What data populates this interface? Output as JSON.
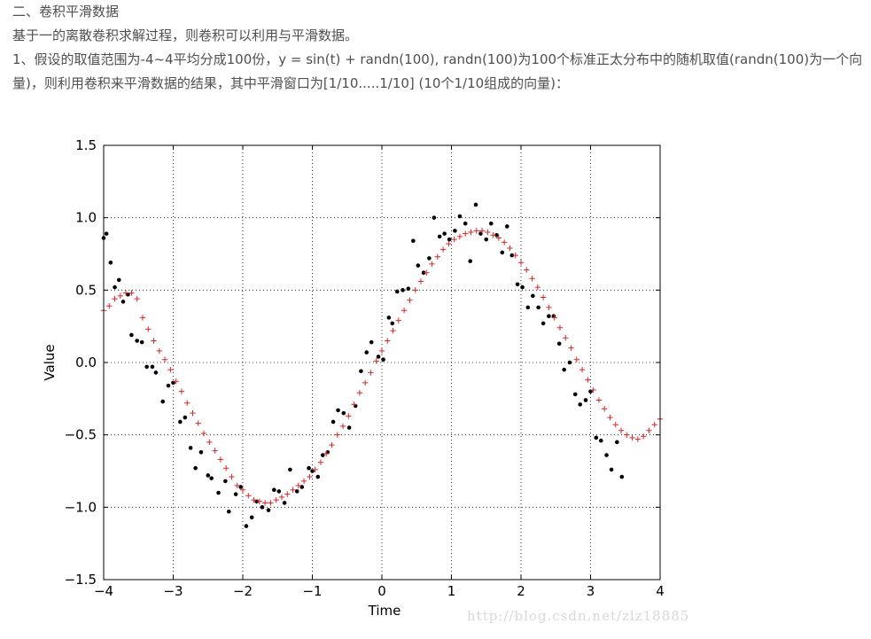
{
  "article": {
    "heading": "二、卷积平滑数据",
    "intro": "基于一的离散卷积求解过程，则卷积可以利用与平滑数据。",
    "paragraph": "1、假设的取值范围为-4~4平均分成100份，y = sin(t) + randn(100), randn(100)为100个标准正太分布中的随机取值(randn(100)为一个向量)，则利用卷积来平滑数据的结果，其中平滑窗口为[1/10.....1/10] (10个1/10组成的向量)："
  },
  "watermark": "http://blog.csdn.net/zlz18885",
  "chart_data": {
    "type": "scatter",
    "xlabel": "Time",
    "ylabel": "Value",
    "xlim": [
      -4,
      4
    ],
    "ylim": [
      -1.5,
      1.5
    ],
    "xticks": [
      -4,
      -3,
      -2,
      -1,
      0,
      1,
      2,
      3,
      4
    ],
    "xtick_labels": [
      "−4",
      "−3",
      "−2",
      "−1",
      "0",
      "1",
      "2",
      "3",
      "4"
    ],
    "yticks": [
      -1.5,
      -1.0,
      -0.5,
      0.0,
      0.5,
      1.0,
      1.5
    ],
    "ytick_labels": [
      "−1.5",
      "−1.0",
      "−0.5",
      "0.0",
      "0.5",
      "1.0",
      "1.5"
    ],
    "grid": true,
    "series": [
      {
        "marker": "dot",
        "color": "#000000",
        "points": [
          [
            -4.0,
            0.86
          ],
          [
            -3.96,
            0.89
          ],
          [
            -3.9,
            0.69
          ],
          [
            -3.84,
            0.52
          ],
          [
            -3.78,
            0.57
          ],
          [
            -3.72,
            0.42
          ],
          [
            -3.65,
            0.47
          ],
          [
            -3.6,
            0.19
          ],
          [
            -3.52,
            0.15
          ],
          [
            -3.45,
            0.14
          ],
          [
            -3.38,
            -0.03
          ],
          [
            -3.3,
            -0.03
          ],
          [
            -3.25,
            -0.07
          ],
          [
            -3.15,
            -0.27
          ],
          [
            -3.07,
            -0.16
          ],
          [
            -3.0,
            -0.14
          ],
          [
            -2.9,
            -0.41
          ],
          [
            -2.83,
            -0.38
          ],
          [
            -2.75,
            -0.59
          ],
          [
            -2.68,
            -0.73
          ],
          [
            -2.6,
            -0.62
          ],
          [
            -2.5,
            -0.78
          ],
          [
            -2.45,
            -0.8
          ],
          [
            -2.35,
            -0.9
          ],
          [
            -2.25,
            -0.82
          ],
          [
            -2.2,
            -1.03
          ],
          [
            -2.1,
            -0.91
          ],
          [
            -2.03,
            -0.86
          ],
          [
            -1.95,
            -1.13
          ],
          [
            -1.87,
            -1.07
          ],
          [
            -1.8,
            -0.96
          ],
          [
            -1.72,
            -1.0
          ],
          [
            -1.63,
            -1.02
          ],
          [
            -1.55,
            -0.88
          ],
          [
            -1.48,
            -0.89
          ],
          [
            -1.4,
            -0.97
          ],
          [
            -1.32,
            -0.74
          ],
          [
            -1.22,
            -0.89
          ],
          [
            -1.15,
            -0.86
          ],
          [
            -1.05,
            -0.73
          ],
          [
            -1.0,
            -0.75
          ],
          [
            -0.92,
            -0.79
          ],
          [
            -0.85,
            -0.64
          ],
          [
            -0.78,
            -0.62
          ],
          [
            -0.7,
            -0.41
          ],
          [
            -0.63,
            -0.33
          ],
          [
            -0.55,
            -0.35
          ],
          [
            -0.47,
            -0.45
          ],
          [
            -0.38,
            -0.3
          ],
          [
            -0.3,
            -0.06
          ],
          [
            -0.22,
            0.07
          ],
          [
            -0.15,
            0.14
          ],
          [
            -0.05,
            0.04
          ],
          [
            0.02,
            0.02
          ],
          [
            0.1,
            0.31
          ],
          [
            0.15,
            0.27
          ],
          [
            0.22,
            0.49
          ],
          [
            0.3,
            0.5
          ],
          [
            0.38,
            0.51
          ],
          [
            0.45,
            0.84
          ],
          [
            0.52,
            0.67
          ],
          [
            0.6,
            0.62
          ],
          [
            0.68,
            0.72
          ],
          [
            0.75,
            1.0
          ],
          [
            0.83,
            0.87
          ],
          [
            0.9,
            0.89
          ],
          [
            0.97,
            0.85
          ],
          [
            1.05,
            0.91
          ],
          [
            1.12,
            1.01
          ],
          [
            1.2,
            0.96
          ],
          [
            1.27,
            0.7
          ],
          [
            1.35,
            1.09
          ],
          [
            1.42,
            0.89
          ],
          [
            1.5,
            0.85
          ],
          [
            1.57,
            0.96
          ],
          [
            1.65,
            0.88
          ],
          [
            1.73,
            0.76
          ],
          [
            1.8,
            0.94
          ],
          [
            1.87,
            0.74
          ],
          [
            1.95,
            0.54
          ],
          [
            2.02,
            0.52
          ],
          [
            2.1,
            0.38
          ],
          [
            2.17,
            0.46
          ],
          [
            2.25,
            0.38
          ],
          [
            2.32,
            0.27
          ],
          [
            2.4,
            0.32
          ],
          [
            2.47,
            0.32
          ],
          [
            2.55,
            0.13
          ],
          [
            2.62,
            -0.05
          ],
          [
            2.7,
            0.0
          ],
          [
            2.78,
            -0.22
          ],
          [
            2.85,
            -0.29
          ],
          [
            2.93,
            -0.26
          ],
          [
            3.0,
            -0.2
          ],
          [
            3.08,
            -0.52
          ],
          [
            3.15,
            -0.54
          ],
          [
            3.23,
            -0.64
          ],
          [
            3.3,
            -0.74
          ],
          [
            3.38,
            -0.55
          ],
          [
            3.45,
            -0.79
          ]
        ]
      },
      {
        "marker": "plus",
        "color": "#d62728",
        "points": [
          [
            -4.0,
            0.36
          ],
          [
            -3.92,
            0.39
          ],
          [
            -3.84,
            0.44
          ],
          [
            -3.76,
            0.46
          ],
          [
            -3.68,
            0.48
          ],
          [
            -3.6,
            0.48
          ],
          [
            -3.52,
            0.44
          ],
          [
            -3.44,
            0.31
          ],
          [
            -3.36,
            0.23
          ],
          [
            -3.28,
            0.15
          ],
          [
            -3.2,
            0.08
          ],
          [
            -3.12,
            0.02
          ],
          [
            -3.04,
            -0.05
          ],
          [
            -2.96,
            -0.13
          ],
          [
            -2.88,
            -0.2
          ],
          [
            -2.8,
            -0.28
          ],
          [
            -2.72,
            -0.35
          ],
          [
            -2.64,
            -0.42
          ],
          [
            -2.56,
            -0.49
          ],
          [
            -2.48,
            -0.55
          ],
          [
            -2.4,
            -0.61
          ],
          [
            -2.32,
            -0.67
          ],
          [
            -2.24,
            -0.73
          ],
          [
            -2.16,
            -0.79
          ],
          [
            -2.08,
            -0.85
          ],
          [
            -2.0,
            -0.88
          ],
          [
            -1.92,
            -0.92
          ],
          [
            -1.84,
            -0.95
          ],
          [
            -1.76,
            -0.96
          ],
          [
            -1.68,
            -0.97
          ],
          [
            -1.6,
            -0.97
          ],
          [
            -1.52,
            -0.95
          ],
          [
            -1.44,
            -0.93
          ],
          [
            -1.36,
            -0.91
          ],
          [
            -1.28,
            -0.88
          ],
          [
            -1.2,
            -0.85
          ],
          [
            -1.12,
            -0.82
          ],
          [
            -1.04,
            -0.79
          ],
          [
            -0.96,
            -0.74
          ],
          [
            -0.88,
            -0.69
          ],
          [
            -0.8,
            -0.63
          ],
          [
            -0.72,
            -0.57
          ],
          [
            -0.64,
            -0.5
          ],
          [
            -0.56,
            -0.44
          ],
          [
            -0.48,
            -0.37
          ],
          [
            -0.4,
            -0.29
          ],
          [
            -0.32,
            -0.21
          ],
          [
            -0.24,
            -0.14
          ],
          [
            -0.16,
            -0.07
          ],
          [
            -0.08,
            0.01
          ],
          [
            0.0,
            0.08
          ],
          [
            0.08,
            0.15
          ],
          [
            0.16,
            0.22
          ],
          [
            0.24,
            0.29
          ],
          [
            0.32,
            0.36
          ],
          [
            0.4,
            0.43
          ],
          [
            0.48,
            0.5
          ],
          [
            0.56,
            0.56
          ],
          [
            0.64,
            0.62
          ],
          [
            0.72,
            0.68
          ],
          [
            0.8,
            0.73
          ],
          [
            0.88,
            0.78
          ],
          [
            0.96,
            0.82
          ],
          [
            1.04,
            0.85
          ],
          [
            1.12,
            0.87
          ],
          [
            1.2,
            0.89
          ],
          [
            1.28,
            0.9
          ],
          [
            1.36,
            0.91
          ],
          [
            1.44,
            0.91
          ],
          [
            1.52,
            0.9
          ],
          [
            1.6,
            0.88
          ],
          [
            1.68,
            0.86
          ],
          [
            1.76,
            0.83
          ],
          [
            1.84,
            0.79
          ],
          [
            1.92,
            0.74
          ],
          [
            2.0,
            0.69
          ],
          [
            2.08,
            0.64
          ],
          [
            2.16,
            0.58
          ],
          [
            2.24,
            0.52
          ],
          [
            2.32,
            0.45
          ],
          [
            2.4,
            0.38
          ],
          [
            2.48,
            0.31
          ],
          [
            2.56,
            0.24
          ],
          [
            2.64,
            0.17
          ],
          [
            2.72,
            0.1
          ],
          [
            2.8,
            0.02
          ],
          [
            2.88,
            -0.05
          ],
          [
            2.96,
            -0.12
          ],
          [
            3.04,
            -0.19
          ],
          [
            3.12,
            -0.26
          ],
          [
            3.2,
            -0.32
          ],
          [
            3.28,
            -0.38
          ],
          [
            3.36,
            -0.43
          ],
          [
            3.44,
            -0.47
          ],
          [
            3.52,
            -0.5
          ],
          [
            3.6,
            -0.52
          ],
          [
            3.68,
            -0.53
          ],
          [
            3.76,
            -0.51
          ],
          [
            3.84,
            -0.47
          ],
          [
            3.92,
            -0.43
          ],
          [
            4.0,
            -0.39
          ]
        ]
      }
    ]
  }
}
